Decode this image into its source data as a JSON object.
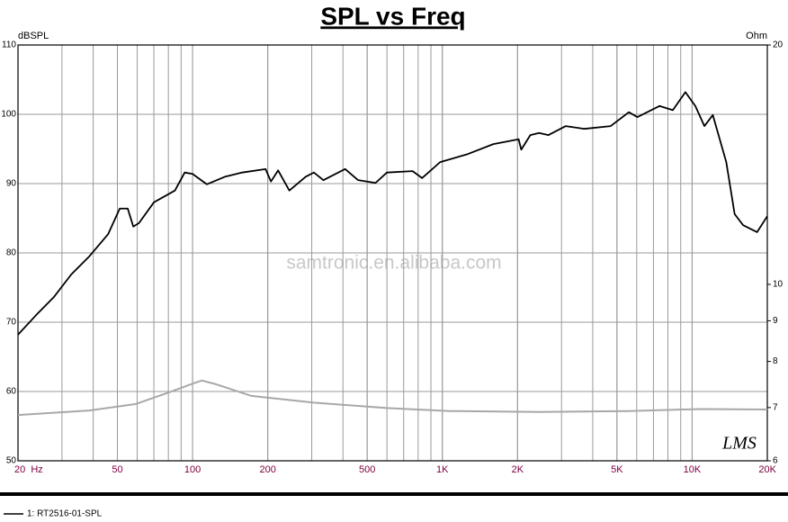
{
  "chart_data": {
    "type": "line",
    "title": "SPL vs Freq",
    "y_label": "dBSPL",
    "y2_label": "Ohm",
    "watermark": "samtronic.en.alibaba.com",
    "logo": "LMS",
    "x_log": true,
    "y2_log": true,
    "grid": true,
    "xlim": [
      20,
      20000
    ],
    "xticks": [
      {
        "value": 20,
        "label": "20  Hz"
      },
      50,
      100,
      200,
      500,
      {
        "value": 1000,
        "label": "1K"
      },
      {
        "value": 2000,
        "label": "2K"
      },
      {
        "value": 5000,
        "label": "5K"
      },
      {
        "value": 10000,
        "label": "10K"
      },
      {
        "value": 20000,
        "label": "20K"
      }
    ],
    "ylim": [
      50,
      110
    ],
    "yticks": [
      50,
      60,
      70,
      80,
      90,
      100,
      110
    ],
    "y2lim": [
      6,
      20
    ],
    "y2ticks": [
      6,
      7,
      8,
      9,
      10,
      20
    ],
    "series": [
      {
        "name": "1: RT2516-01-SPL",
        "color": "#000000",
        "x": [
          20,
          23.6,
          27.8,
          32.7,
          38.6,
          45.9,
          51.1,
          55,
          57.9,
          61,
          70,
          85,
          93,
          100,
          114,
          135,
          158,
          196,
          206,
          220,
          244,
          284,
          306,
          334,
          408,
          460,
          540,
          600,
          760,
          830,
          980,
          1250,
          1600,
          2020,
          2070,
          2250,
          2440,
          2660,
          3120,
          3690,
          4720,
          5580,
          6040,
          7400,
          8370,
          9400,
          10300,
          11200,
          12100,
          13700,
          14800,
          16000,
          18200,
          20000
        ],
        "values": [
          68.2,
          71.0,
          73.6,
          76.9,
          79.5,
          82.7,
          86.4,
          86.4,
          83.8,
          84.3,
          87.3,
          89.0,
          91.6,
          91.4,
          89.9,
          91.0,
          91.6,
          92.1,
          90.3,
          91.9,
          89.0,
          91.0,
          91.6,
          90.5,
          92.1,
          90.5,
          90.1,
          91.6,
          91.8,
          90.8,
          93.1,
          94.2,
          95.7,
          96.4,
          94.9,
          97.0,
          97.3,
          97.0,
          98.3,
          97.9,
          98.3,
          100.3,
          99.6,
          101.2,
          100.6,
          103.2,
          101.2,
          98.3,
          99.9,
          93.1,
          85.6,
          84.0,
          83.0,
          85.3
        ]
      },
      {
        "color": "#a8a8a8",
        "axis": "y2",
        "x": [
          20,
          38.6,
          59,
          81,
          100,
          109,
          124,
          172,
          306,
          600,
          1070,
          2440,
          5580,
          10800,
          20000
        ],
        "values": [
          6.85,
          6.94,
          7.07,
          7.32,
          7.5,
          7.57,
          7.49,
          7.24,
          7.1,
          6.99,
          6.93,
          6.91,
          6.93,
          6.97,
          6.96
        ]
      }
    ]
  }
}
